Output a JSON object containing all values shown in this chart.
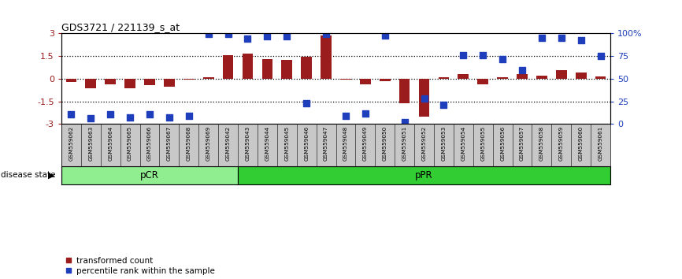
{
  "title": "GDS3721 / 221139_s_at",
  "samples": [
    "GSM559062",
    "GSM559063",
    "GSM559064",
    "GSM559065",
    "GSM559066",
    "GSM559067",
    "GSM559068",
    "GSM559069",
    "GSM559042",
    "GSM559043",
    "GSM559044",
    "GSM559045",
    "GSM559046",
    "GSM559047",
    "GSM559048",
    "GSM559049",
    "GSM559050",
    "GSM559051",
    "GSM559052",
    "GSM559053",
    "GSM559054",
    "GSM559055",
    "GSM559056",
    "GSM559057",
    "GSM559058",
    "GSM559059",
    "GSM559060",
    "GSM559061"
  ],
  "bar_values": [
    -0.22,
    -0.65,
    -0.35,
    -0.65,
    -0.45,
    -0.55,
    -0.05,
    0.08,
    1.55,
    1.65,
    1.3,
    1.25,
    1.45,
    2.85,
    -0.08,
    -0.35,
    -0.15,
    -1.65,
    -2.5,
    0.12,
    0.3,
    -0.35,
    0.1,
    0.3,
    0.22,
    0.55,
    0.4,
    0.15
  ],
  "percentile_values": [
    -2.35,
    -2.6,
    -2.35,
    -2.55,
    -2.35,
    -2.55,
    -2.45,
    2.95,
    2.95,
    2.65,
    2.8,
    2.8,
    -1.65,
    2.95,
    -2.45,
    -2.3,
    2.85,
    -2.9,
    -1.3,
    -1.75,
    1.55,
    1.55,
    1.3,
    0.55,
    2.7,
    2.7,
    2.55,
    1.5
  ],
  "pCR_count": 9,
  "pPR_count": 19,
  "ylim": [
    -3,
    3
  ],
  "yticks_left": [
    -3,
    -1.5,
    0,
    1.5,
    3
  ],
  "dotted_lines": [
    -1.5,
    0,
    1.5
  ],
  "bar_color": "#9B1C1C",
  "square_color": "#1F3EBB",
  "pCR_color": "#90EE90",
  "pPR_color": "#32CD32",
  "bg_color": "#C8C8C8",
  "legend_red": "transformed count",
  "legend_blue": "percentile rank within the sample"
}
